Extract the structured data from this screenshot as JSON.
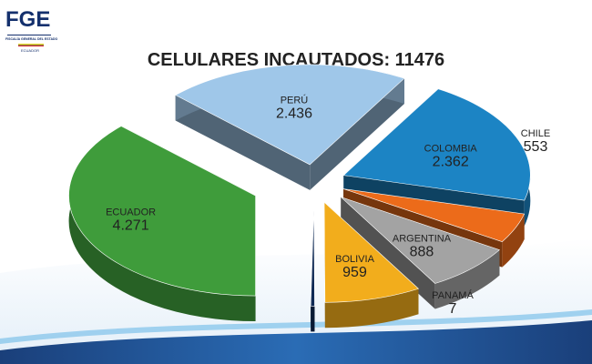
{
  "logo": {
    "main": "FGE",
    "subtitle": "FISCALÍA GENERAL DEL ESTADO",
    "country": "ECUADOR"
  },
  "chart_data": {
    "type": "pie",
    "title": "CELULARES INCAUTADOS: 11476",
    "slices": [
      {
        "label": "ECUADOR",
        "value_label": "4.271",
        "value": 4271,
        "color": "#3f9c3b"
      },
      {
        "label": "PERÚ",
        "value_label": "2.436",
        "value": 2436,
        "color": "#9fc7e9"
      },
      {
        "label": "COLOMBIA",
        "value_label": "2.362",
        "value": 2362,
        "color": "#1c84c4"
      },
      {
        "label": "CHILE",
        "value_label": "553",
        "value": 553,
        "color": "#ec6b1a"
      },
      {
        "label": "ARGENTINA",
        "value_label": "888",
        "value": 888,
        "color": "#a3a3a3"
      },
      {
        "label": "BOLIVIA",
        "value_label": "959",
        "value": 959,
        "color": "#f2ad1c"
      },
      {
        "label": "PANAMÁ",
        "value_label": "7",
        "value": 7,
        "color": "#0f2a55"
      }
    ]
  }
}
